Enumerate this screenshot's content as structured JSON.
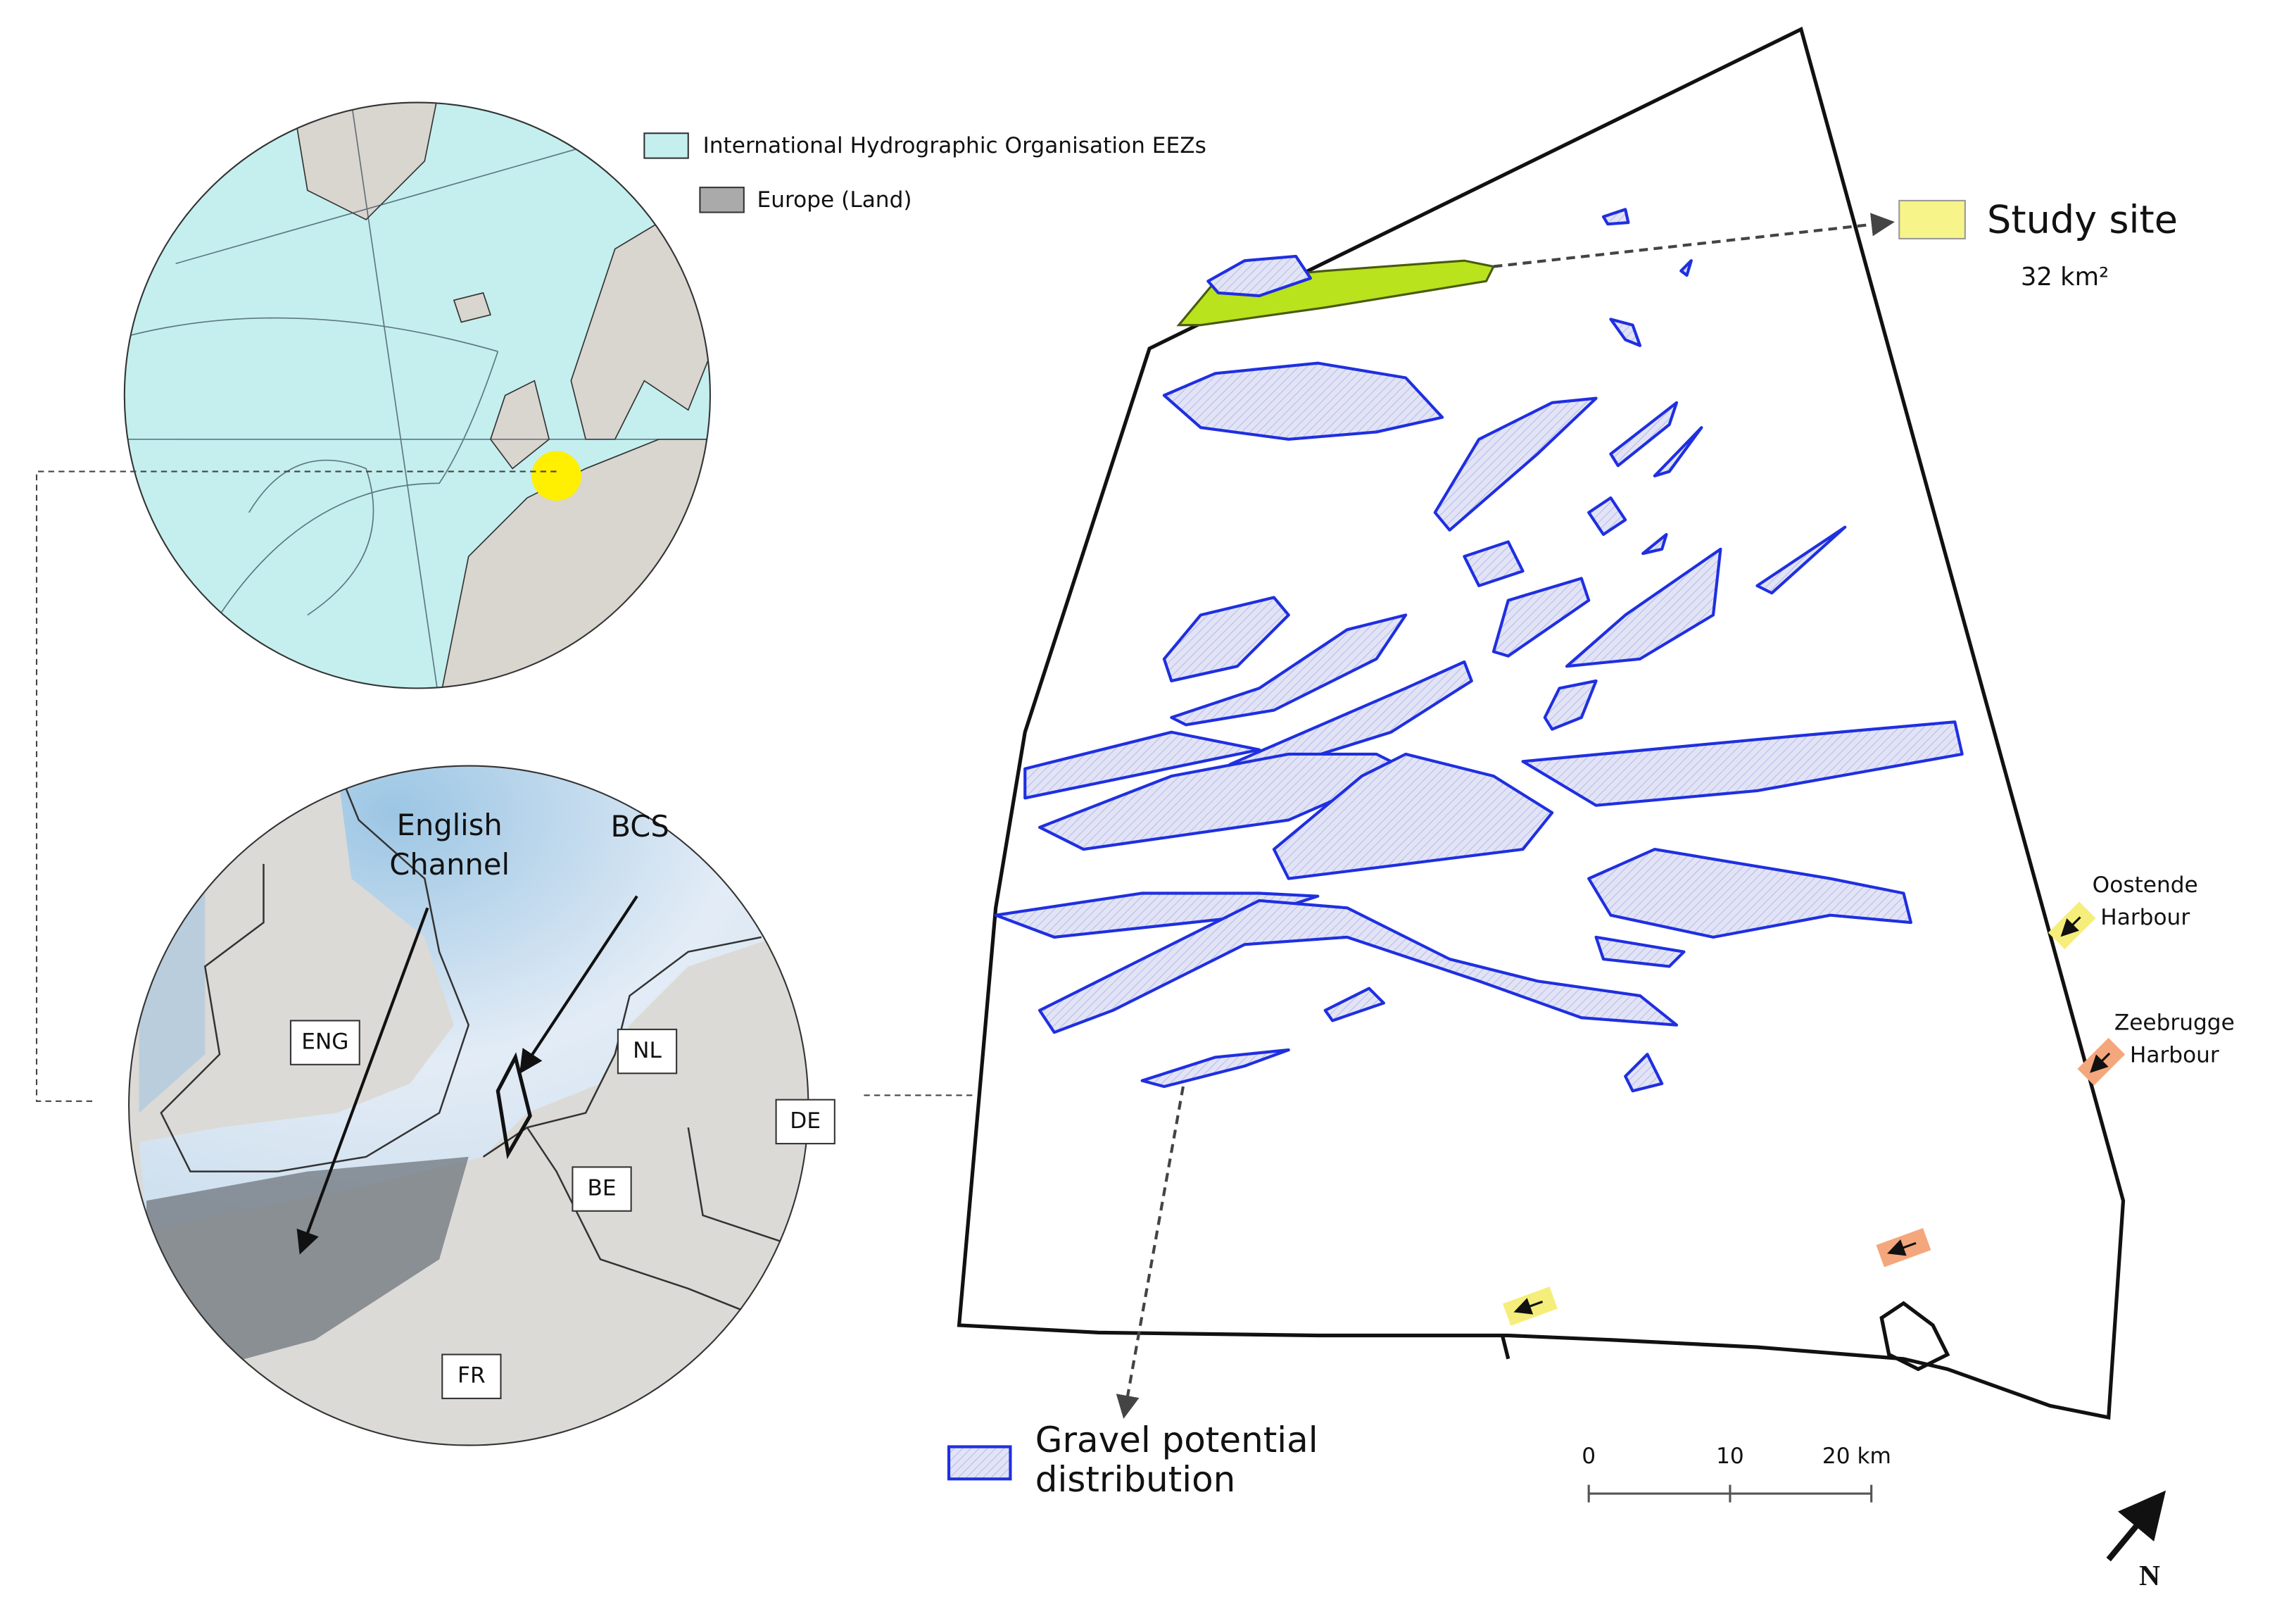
{
  "legend": {
    "eez": "International Hydrographic Organisation EEZs",
    "land": "Europe (Land)"
  },
  "inset_labels": {
    "channel": [
      "English",
      "Channel"
    ],
    "bcs": "BCS",
    "countries": [
      "ENG",
      "NL",
      "DE",
      "BE",
      "FR"
    ]
  },
  "study_site": {
    "title": "Study site",
    "area": "32 km²"
  },
  "harbours": [
    [
      "Oostende",
      "Harbour"
    ],
    [
      "Zeebrugge",
      "Harbour"
    ]
  ],
  "gravel": [
    "Gravel potential",
    "distribution"
  ],
  "scale_bar": {
    "ticks": [
      0,
      10,
      {
        "value": 20,
        "label": "20 km"
      }
    ]
  },
  "north": "N"
}
